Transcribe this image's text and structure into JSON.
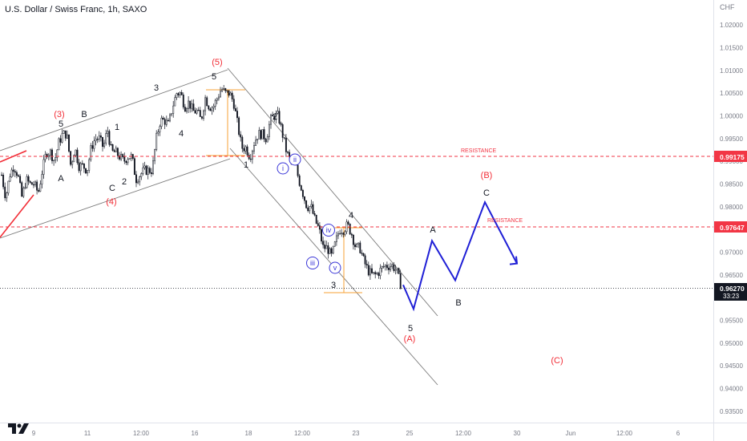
{
  "chart_data": {
    "type": "candlestick",
    "title": "U.S. Dollar / Swiss Franc, 1h, SAXO",
    "currency_label": "CHF",
    "y_axis": {
      "range": [
        0.9325,
        1.0255
      ],
      "ticks": [
        "1.02000",
        "1.01500",
        "1.01000",
        "1.00500",
        "1.00000",
        "0.99500",
        "0.99000",
        "0.98500",
        "0.98000",
        "0.97500",
        "0.97000",
        "0.96500",
        "0.96000",
        "0.95500",
        "0.95000",
        "0.94500",
        "0.94000",
        "0.93500"
      ]
    },
    "x_axis": {
      "ticks": [
        "9",
        "11",
        "12:00",
        "16",
        "18",
        "12:00",
        "23",
        "25",
        "12:00",
        "30",
        "Jun",
        "12:00",
        "6"
      ]
    },
    "price_path": [
      [
        0.987,
        0.982,
        0.987,
        0.989
      ],
      [
        0.987,
        0.982,
        0.986,
        0.985
      ],
      [
        0.985,
        0.983,
        0.988,
        0.992
      ],
      [
        0.992,
        0.99,
        0.994,
        0.996
      ],
      [
        0.996,
        0.989,
        0.993,
        0.989
      ],
      [
        0.989,
        0.988,
        0.993,
        0.995
      ],
      [
        0.995,
        0.993,
        0.997,
        0.992
      ],
      [
        0.992,
        0.991,
        0.99,
        0.991
      ],
      [
        0.991,
        0.986,
        0.987,
        0.988
      ],
      [
        0.988,
        0.988,
        0.995,
        0.999
      ],
      [
        0.999,
        0.998,
        1.002,
        1.005
      ],
      [
        1.005,
        1.002,
        1.003,
        1.001
      ],
      [
        1.001,
        0.999,
        1.004,
        1.002
      ],
      [
        1.002,
        1.004,
        1.006,
        1.005
      ],
      [
        1.005,
        1.003,
        0.998,
        0.993
      ],
      [
        0.993,
        0.991,
        0.994,
        0.996
      ],
      [
        0.996,
        0.995,
        0.999,
        1.0
      ],
      [
        1.0,
        0.996,
        0.992,
        0.99
      ],
      [
        0.99,
        0.986,
        0.983,
        0.98
      ],
      [
        0.98,
        0.977,
        0.975,
        0.971
      ],
      [
        0.971,
        0.969,
        0.972,
        0.975
      ],
      [
        0.975,
        0.976,
        0.974,
        0.971
      ],
      [
        0.971,
        0.968,
        0.966,
        0.965
      ],
      [
        0.965,
        0.966,
        0.967,
        0.967
      ],
      [
        0.967,
        0.966,
        0.963
      ]
    ],
    "candle_spacing_bars": 4,
    "trend_channels": "upper and lower channel lines around each move",
    "projection": {
      "color": "#1f1fd6",
      "path": [
        0.9575,
        0.9725,
        0.9638,
        0.981,
        0.9675
      ]
    },
    "current_price": "0.96270",
    "countdown": "33:23",
    "resistance_levels": [
      {
        "label": "RESISTANCE",
        "value": "0.99175"
      },
      {
        "label": "RESISTANCE",
        "value": "0.97647"
      }
    ],
    "wave_labels": {
      "black": [
        "5",
        "B",
        "1",
        "3",
        "5",
        "4",
        "2",
        "A",
        "C",
        "2",
        "1",
        "4",
        "3",
        "5",
        "A",
        "C",
        "B"
      ],
      "red": [
        "(3)",
        "(5)",
        "(4)",
        "(A)",
        "(B)",
        "(C)"
      ],
      "circled": [
        "i",
        "ii",
        "iii",
        "iv",
        "v"
      ]
    }
  },
  "branding": {
    "logo_icon": "tradingview-logo-icon"
  }
}
